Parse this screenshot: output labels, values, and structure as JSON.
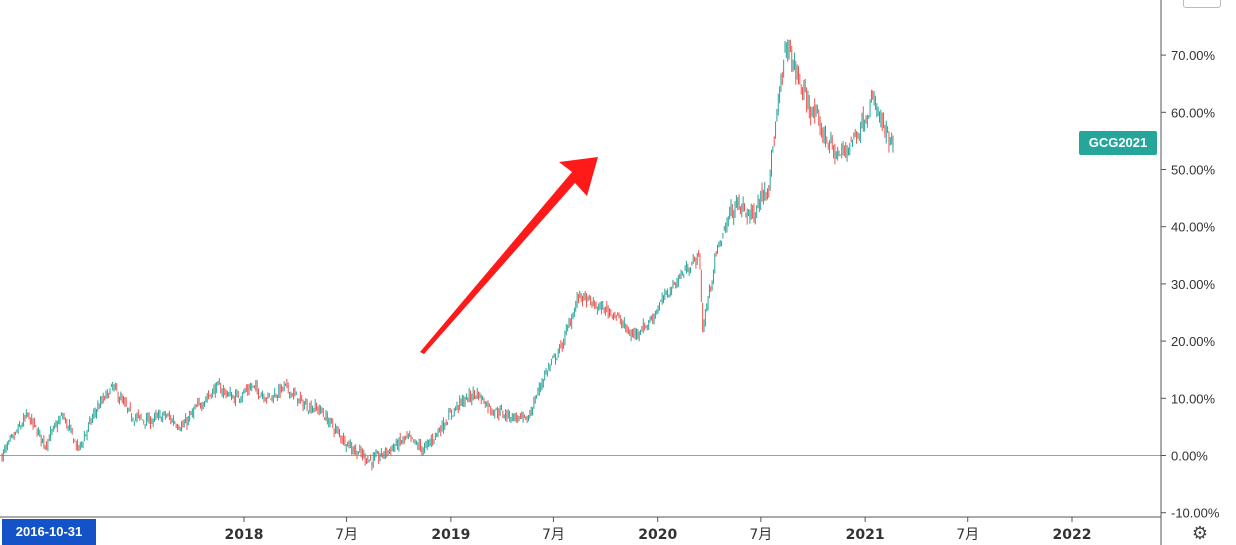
{
  "symbol_label": "GCG2021",
  "crosshair_date": "2016-10-31",
  "colors": {
    "up": "#26a69a",
    "down": "#ef5350",
    "tag": "#26a69a",
    "date_tag": "#1353c7",
    "arrow": "#ff1a1a"
  },
  "icons": {
    "settings": "gear-icon"
  },
  "chart_data": {
    "type": "candlestick",
    "title": "",
    "xlabel": "",
    "ylabel": "",
    "ylim": [
      -11,
      80
    ],
    "yticks": [
      "-10.00%",
      "0.00%",
      "10.00%",
      "20.00%",
      "30.00%",
      "40.00%",
      "50.00%",
      "60.00%",
      "70.00%"
    ],
    "xticks": [
      "2018",
      "7月",
      "2019",
      "7月",
      "2020",
      "7月",
      "2021",
      "7月",
      "2022"
    ],
    "last_value_percent": 54.3,
    "series": [
      {
        "values": [
          [
            "2016-10-31",
            0
          ],
          [
            "2016-12",
            7
          ],
          [
            "2017-01",
            2
          ],
          [
            "2017-02",
            7
          ],
          [
            "2017-03",
            1
          ],
          [
            "2017-04",
            8
          ],
          [
            "2017-05",
            12
          ],
          [
            "2017-06",
            7
          ],
          [
            "2017-07",
            6
          ],
          [
            "2017-08",
            7
          ],
          [
            "2017-09",
            5
          ],
          [
            "2017-10",
            9
          ],
          [
            "2017-11",
            12
          ],
          [
            "2017-12",
            10
          ],
          [
            "2018-01",
            12
          ],
          [
            "2018-02",
            10
          ],
          [
            "2018-03",
            12
          ],
          [
            "2018-04",
            9
          ],
          [
            "2018-05",
            8
          ],
          [
            "2018-06",
            4
          ],
          [
            "2018-07",
            1
          ],
          [
            "2018-08",
            -1
          ],
          [
            "2018-09",
            1
          ],
          [
            "2018-10",
            3
          ],
          [
            "2018-11",
            1
          ],
          [
            "2018-12",
            5
          ],
          [
            "2019-01",
            9
          ],
          [
            "2019-02",
            11
          ],
          [
            "2019-03",
            8
          ],
          [
            "2019-04",
            7
          ],
          [
            "2019-05",
            6
          ],
          [
            "2019-06",
            14
          ],
          [
            "2019-07",
            19
          ],
          [
            "2019-08",
            28
          ],
          [
            "2019-09",
            26
          ],
          [
            "2019-10",
            25
          ],
          [
            "2019-11",
            21
          ],
          [
            "2019-12",
            23
          ],
          [
            "2020-01",
            28
          ],
          [
            "2020-02",
            32
          ],
          [
            "2020-03",
            35
          ],
          [
            "2020-03-20",
            22
          ],
          [
            "2020-04",
            36
          ],
          [
            "2020-05",
            44
          ],
          [
            "2020-06",
            42
          ],
          [
            "2020-07",
            48
          ],
          [
            "2020-08",
            72
          ],
          [
            "2020-09",
            63
          ],
          [
            "2020-10",
            57
          ],
          [
            "2020-11",
            52
          ],
          [
            "2020-12",
            56
          ],
          [
            "2021-01",
            62
          ],
          [
            "2021-02",
            54
          ]
        ]
      }
    ]
  }
}
